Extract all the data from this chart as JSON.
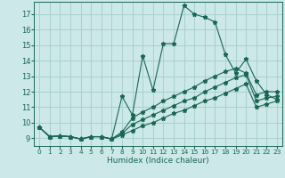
{
  "xlabel": "Humidex (Indice chaleur)",
  "ylabel": "",
  "x_values": [
    0,
    1,
    2,
    3,
    4,
    5,
    6,
    7,
    8,
    9,
    10,
    11,
    12,
    13,
    14,
    15,
    16,
    17,
    18,
    19,
    20,
    21,
    22,
    23
  ],
  "main_line": [
    9.7,
    9.1,
    9.15,
    9.1,
    8.95,
    9.1,
    9.1,
    8.95,
    11.7,
    10.5,
    14.3,
    12.1,
    15.1,
    15.1,
    17.55,
    17.0,
    16.8,
    16.5,
    14.4,
    13.2,
    14.1,
    12.7,
    11.8,
    11.5
  ],
  "line2": [
    9.7,
    9.1,
    9.15,
    9.1,
    8.95,
    9.1,
    9.1,
    8.95,
    9.4,
    10.3,
    10.7,
    11.0,
    11.4,
    11.7,
    12.0,
    12.3,
    12.7,
    13.0,
    13.3,
    13.5,
    13.2,
    11.8,
    12.0,
    12.0
  ],
  "line3": [
    9.7,
    9.1,
    9.15,
    9.1,
    8.95,
    9.1,
    9.1,
    8.95,
    9.3,
    9.9,
    10.2,
    10.5,
    10.8,
    11.1,
    11.4,
    11.6,
    12.0,
    12.3,
    12.6,
    12.9,
    13.1,
    11.4,
    11.6,
    11.7
  ],
  "line4": [
    9.7,
    9.1,
    9.15,
    9.1,
    8.95,
    9.1,
    9.1,
    8.95,
    9.2,
    9.5,
    9.8,
    10.0,
    10.3,
    10.6,
    10.8,
    11.1,
    11.4,
    11.6,
    11.9,
    12.2,
    12.5,
    11.0,
    11.2,
    11.4
  ],
  "bg_color": "#cce8e8",
  "line_color": "#1a6655",
  "grid_color": "#a8d0d0",
  "ylim": [
    8.5,
    17.8
  ],
  "xlim": [
    -0.5,
    23.5
  ],
  "yticks": [
    9,
    10,
    11,
    12,
    13,
    14,
    15,
    16,
    17
  ],
  "xticks": [
    0,
    1,
    2,
    3,
    4,
    5,
    6,
    7,
    8,
    9,
    10,
    11,
    12,
    13,
    14,
    15,
    16,
    17,
    18,
    19,
    20,
    21,
    22,
    23
  ]
}
